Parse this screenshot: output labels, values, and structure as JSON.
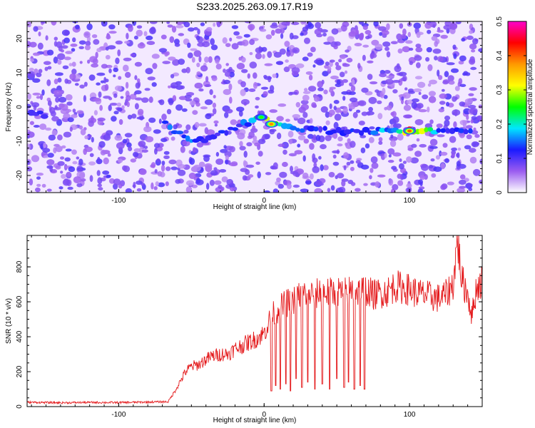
{
  "title": "S233.2025.263.09.17.R19",
  "chart_data": [
    {
      "type": "heatmap",
      "xlabel": "Height of straight line (km)",
      "ylabel": "Frequency (Hz)",
      "xlim": [
        -163,
        150
      ],
      "ylim": [
        -25,
        25
      ],
      "x_ticks": [
        -100,
        0,
        100
      ],
      "y_ticks": [
        20,
        10,
        0,
        -10,
        -20
      ],
      "colorbar": {
        "label": "Normalized spectral amplitude",
        "range": [
          0,
          0.5
        ],
        "ticks": [
          0,
          0.1,
          0.2,
          0.3,
          0.4,
          0.5
        ],
        "colormap": [
          "#ffffff",
          "#9b5cf0",
          "#1a1aff",
          "#00e6ff",
          "#00ff00",
          "#ffff00",
          "#ff9900",
          "#ff0000",
          "#ff00cc"
        ]
      },
      "signal_track": [
        {
          "x": -160,
          "f": -2,
          "a": 0.12
        },
        {
          "x": -68,
          "f": -5,
          "a": 0.15
        },
        {
          "x": -55,
          "f": -9,
          "a": 0.13
        },
        {
          "x": -50,
          "f": -10,
          "a": 0.16
        },
        {
          "x": -35,
          "f": -9,
          "a": 0.12
        },
        {
          "x": -20,
          "f": -6,
          "a": 0.13
        },
        {
          "x": -8,
          "f": -4,
          "a": 0.18
        },
        {
          "x": -2,
          "f": -3,
          "a": 0.26
        },
        {
          "x": 5,
          "f": -5,
          "a": 0.38
        },
        {
          "x": 20,
          "f": -6,
          "a": 0.14
        },
        {
          "x": 45,
          "f": -7,
          "a": 0.13
        },
        {
          "x": 70,
          "f": -7,
          "a": 0.14
        },
        {
          "x": 90,
          "f": -7,
          "a": 0.2
        },
        {
          "x": 100,
          "f": -7,
          "a": 0.4
        },
        {
          "x": 120,
          "f": -7,
          "a": 0.15
        },
        {
          "x": 145,
          "f": -7,
          "a": 0.13
        }
      ]
    },
    {
      "type": "line",
      "xlabel": "Height of straight line (km)",
      "ylabel": "SNR (10 * v/v)",
      "xlim": [
        -163,
        150
      ],
      "ylim": [
        0,
        980
      ],
      "x_ticks": [
        -100,
        0,
        100
      ],
      "y_ticks": [
        0,
        200,
        400,
        600,
        800
      ],
      "line_color": "#e41a1c",
      "series": [
        {
          "x": [
            -163,
            -140,
            -120,
            -100,
            -80,
            -66,
            -62,
            -58,
            -54,
            -50,
            -45,
            -40,
            -35,
            -30,
            -25,
            -20,
            -15,
            -10,
            -5,
            0,
            5,
            10,
            15,
            20,
            25,
            30,
            35,
            40,
            45,
            50,
            55,
            60,
            65,
            70,
            75,
            80,
            85,
            90,
            95,
            100,
            105,
            110,
            115,
            120,
            125,
            130,
            133,
            136,
            140,
            143,
            146,
            150
          ],
          "values": [
            25,
            22,
            24,
            23,
            26,
            28,
            80,
            140,
            200,
            230,
            240,
            270,
            290,
            300,
            300,
            330,
            350,
            370,
            390,
            420,
            520,
            560,
            590,
            610,
            640,
            650,
            640,
            660,
            650,
            660,
            650,
            670,
            660,
            670,
            640,
            650,
            660,
            690,
            680,
            670,
            650,
            640,
            630,
            620,
            640,
            700,
            960,
            720,
            650,
            520,
            680,
            720
          ]
        }
      ],
      "dropouts": [
        {
          "x": 5,
          "min": 90
        },
        {
          "x": 8,
          "min": 120
        },
        {
          "x": 11,
          "min": 100
        },
        {
          "x": 15,
          "min": 130
        },
        {
          "x": 18,
          "min": 90
        },
        {
          "x": 22,
          "min": 160
        },
        {
          "x": 26,
          "min": 110
        },
        {
          "x": 30,
          "min": 140
        },
        {
          "x": 35,
          "min": 100
        },
        {
          "x": 40,
          "min": 130
        },
        {
          "x": 45,
          "min": 100
        },
        {
          "x": 50,
          "min": 160
        },
        {
          "x": 55,
          "min": 110
        },
        {
          "x": 58,
          "min": 140
        },
        {
          "x": 62,
          "min": 100
        },
        {
          "x": 66,
          "min": 120
        },
        {
          "x": 69,
          "min": 100
        }
      ]
    }
  ]
}
